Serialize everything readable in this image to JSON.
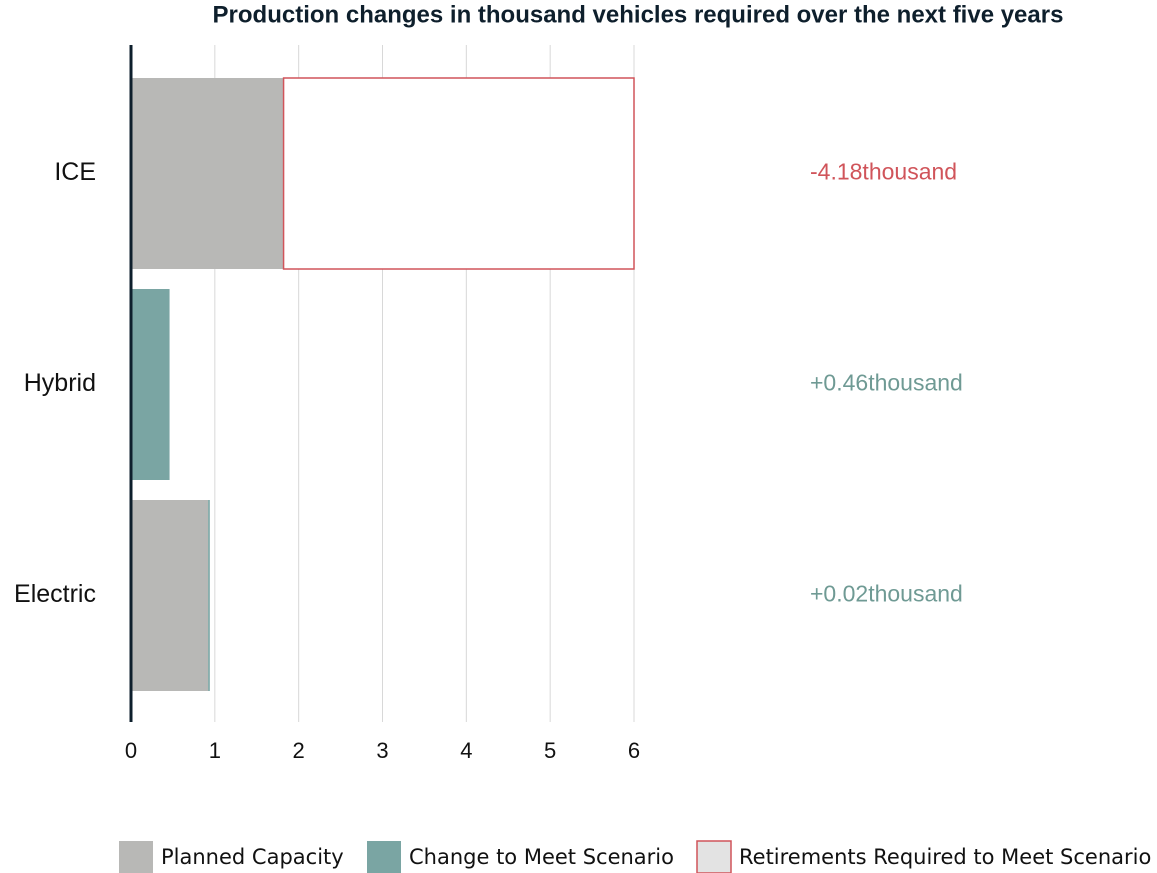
{
  "chart_data": {
    "type": "stacked_barh",
    "title": "Production changes in thousand vehicles required over the next five years",
    "categories": [
      "ICE",
      "Hybrid",
      "Electric"
    ],
    "series": [
      {
        "name": "Planned Capacity",
        "color": "#b8b8b6",
        "values": [
          1.82,
          0,
          0.92
        ]
      },
      {
        "name": "Change to Meet Scenario",
        "color": "#7aa5a3",
        "values": [
          0,
          0.46,
          0.02
        ]
      },
      {
        "name": "Retirements Required to Meet Scenario",
        "color": "#d0545a",
        "outline": true,
        "values": [
          4.18,
          0,
          0
        ]
      }
    ],
    "annotations": [
      "-4.18thousand",
      "+0.46thousand",
      "+0.02thousand"
    ],
    "annotation_colors": [
      "#d0545a",
      "#6f9a94",
      "#6f9a94"
    ],
    "xlim": [
      0,
      6
    ],
    "xticks": [
      0,
      1,
      2,
      3,
      4,
      5,
      6
    ],
    "grid": true
  }
}
